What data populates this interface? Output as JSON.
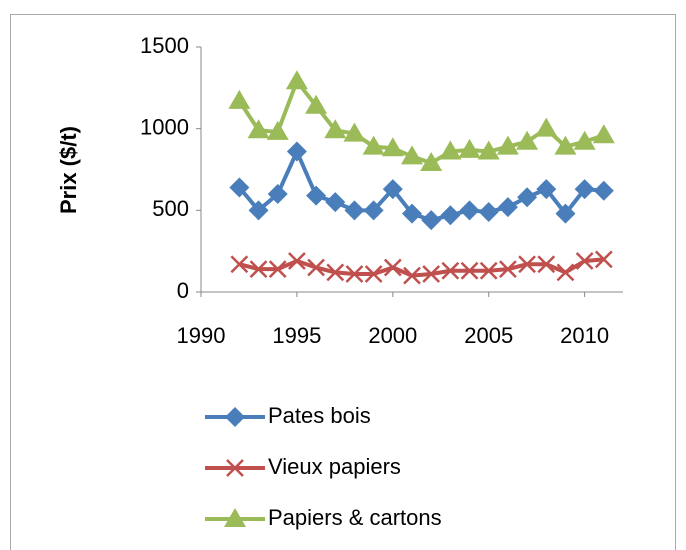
{
  "chart_data": {
    "type": "line",
    "ylabel": "Prix ($/t)",
    "x": [
      1992,
      1993,
      1994,
      1995,
      1996,
      1997,
      1998,
      1999,
      2000,
      2001,
      2002,
      2003,
      2004,
      2005,
      2006,
      2007,
      2008,
      2009,
      2010,
      2011
    ],
    "series": [
      {
        "name": "Pates bois",
        "color": "#4a7ebb",
        "marker": "diamond",
        "values": [
          640,
          500,
          600,
          860,
          590,
          550,
          500,
          500,
          630,
          480,
          440,
          470,
          500,
          490,
          520,
          580,
          630,
          480,
          630,
          620
        ]
      },
      {
        "name": "Vieux papiers",
        "color": "#c0504d",
        "marker": "x",
        "values": [
          170,
          140,
          140,
          190,
          150,
          120,
          110,
          110,
          150,
          100,
          110,
          130,
          130,
          130,
          140,
          170,
          170,
          120,
          190,
          200
        ]
      },
      {
        "name": "Papiers & cartons",
        "color": "#9bbb59",
        "marker": "triangle",
        "values": [
          1170,
          990,
          980,
          1290,
          1140,
          990,
          970,
          890,
          880,
          830,
          790,
          860,
          870,
          860,
          890,
          920,
          1000,
          890,
          920,
          960
        ]
      }
    ],
    "xlim": [
      1990,
      2012
    ],
    "xticks": [
      1990,
      1995,
      2000,
      2005,
      2010
    ],
    "ylim": [
      0,
      1500
    ],
    "yticks": [
      0,
      500,
      1000,
      1500
    ],
    "legend": "bottom"
  }
}
